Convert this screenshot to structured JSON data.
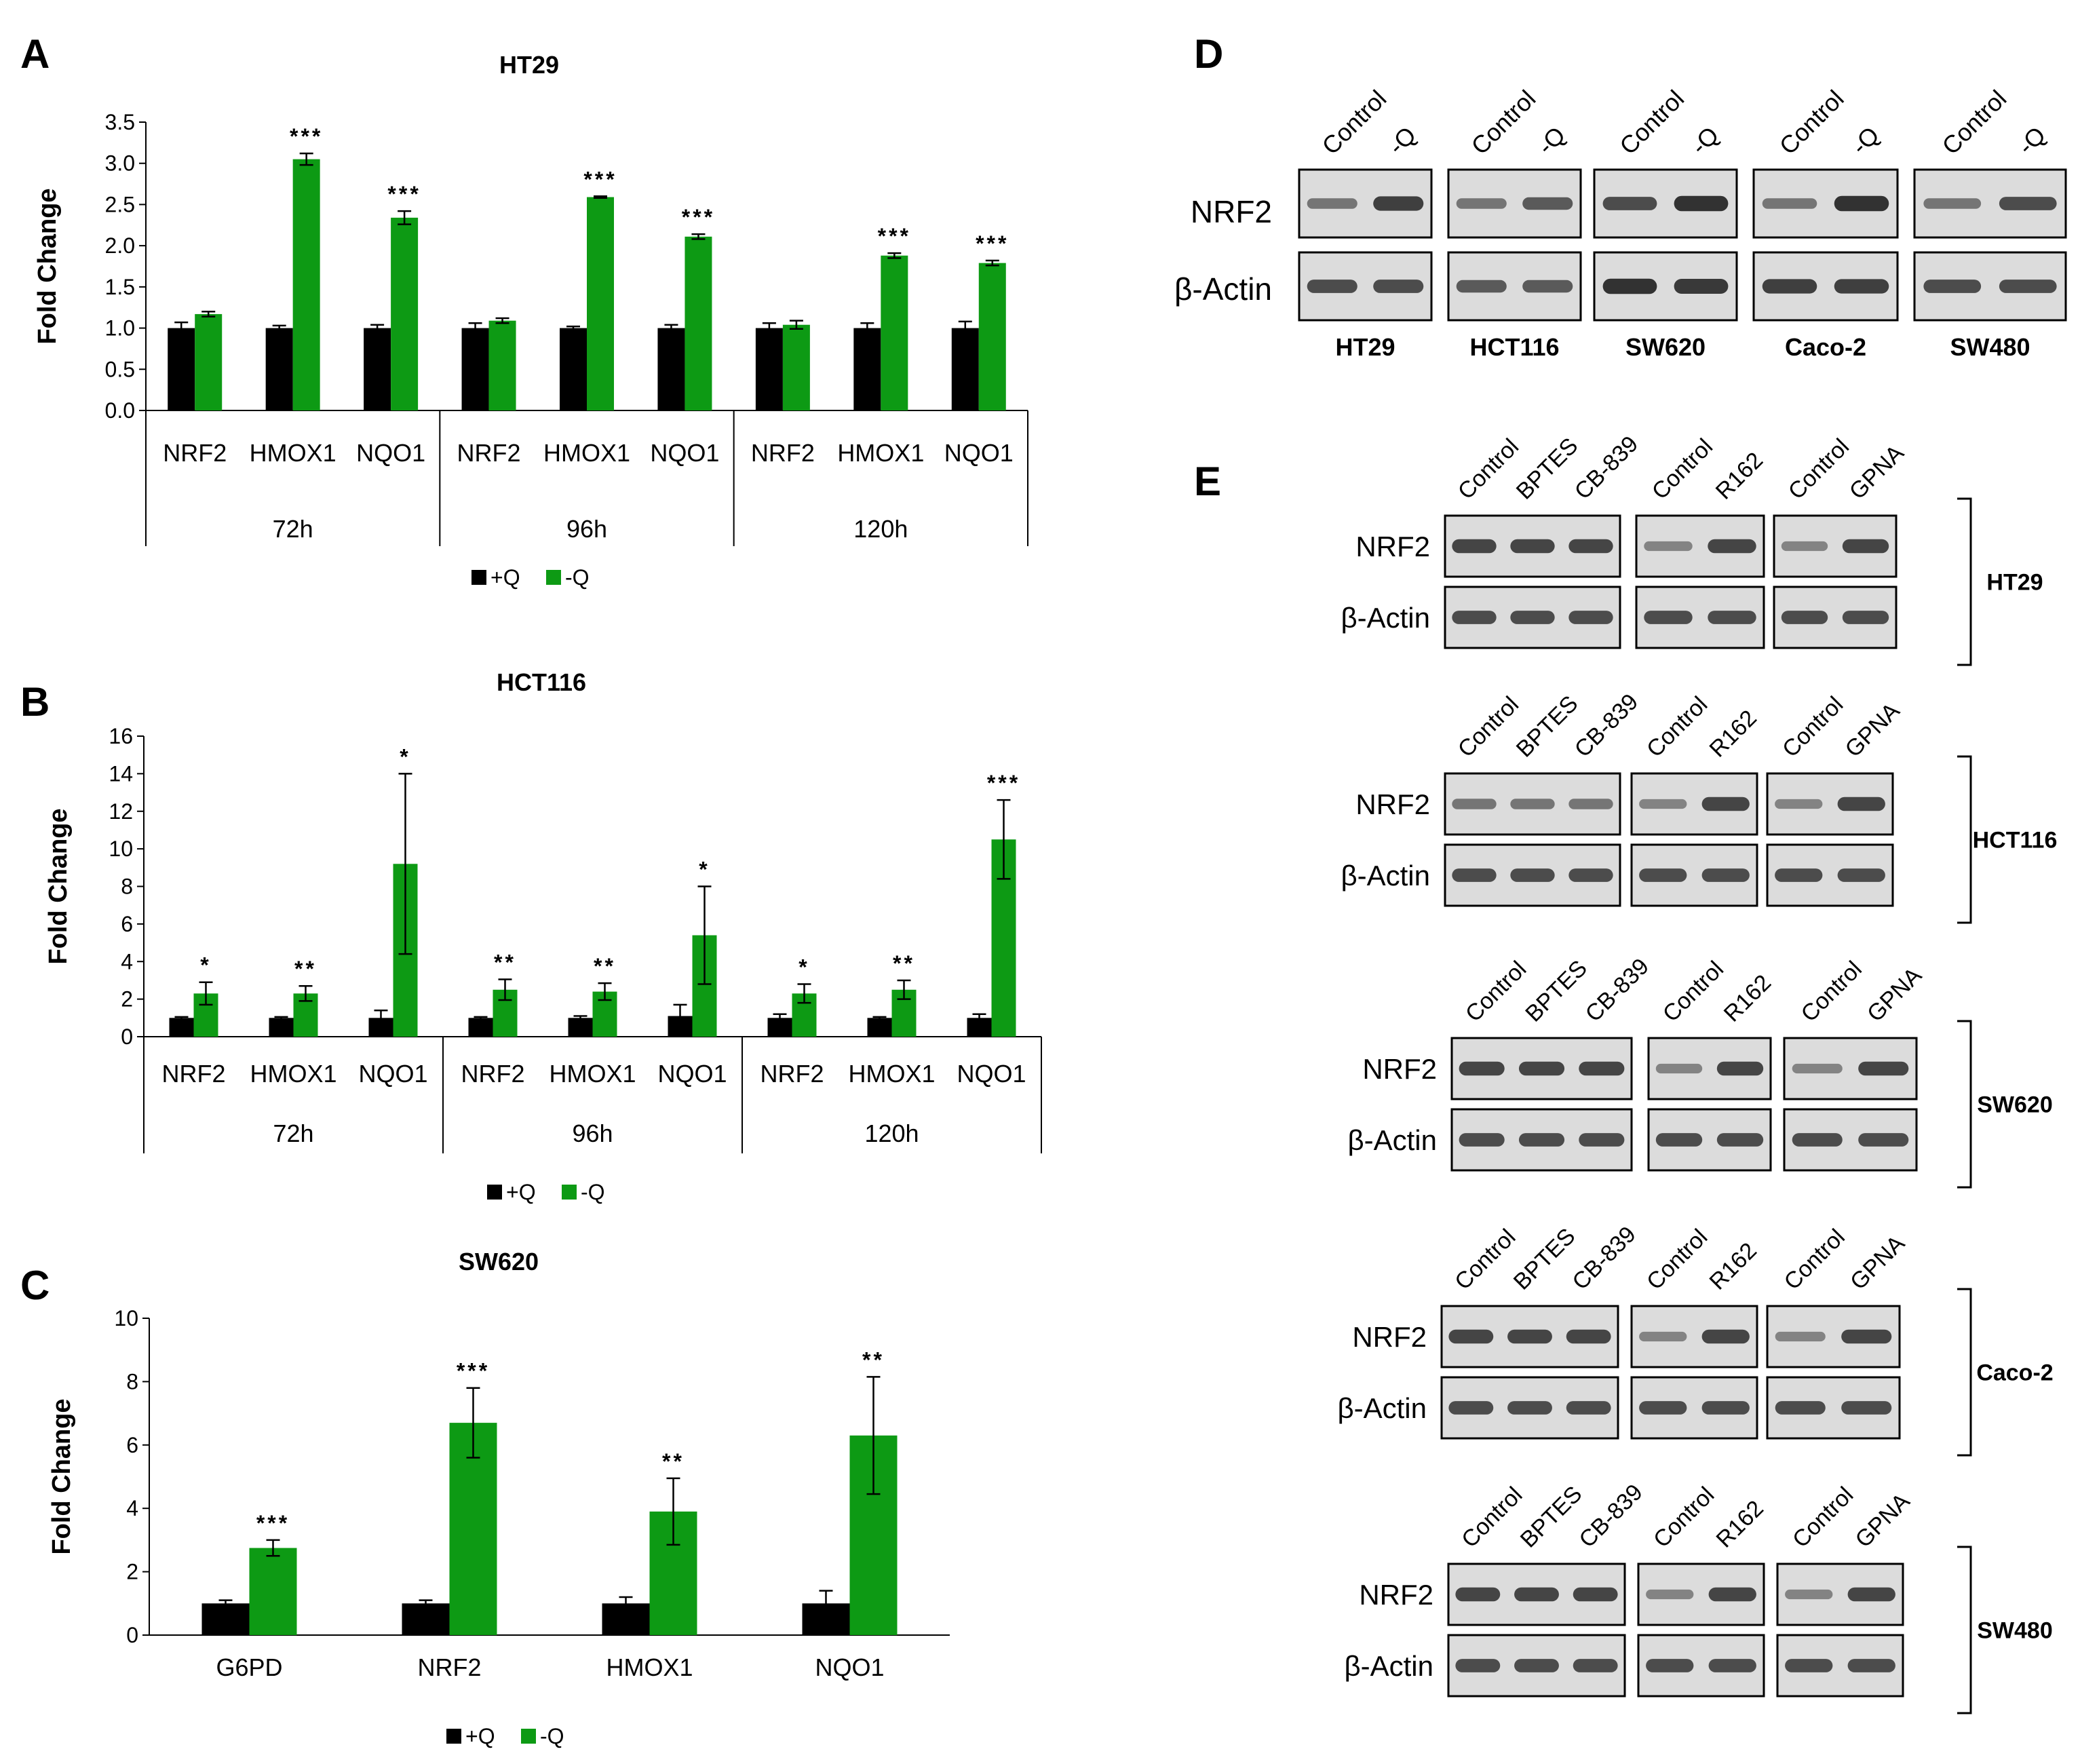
{
  "colors": {
    "plus_q": "#000000",
    "minus_q": "#0d9a14",
    "band": "#1a1a1a",
    "blot_bg": "#dcdcdc"
  },
  "panel_labels": {
    "A": "A",
    "B": "B",
    "C": "C",
    "D": "D",
    "E": "E"
  },
  "chart_data": [
    {
      "id": "A",
      "type": "bar",
      "title": "HT29",
      "ylabel": "Fold Change",
      "ylim": [
        0,
        3.5
      ],
      "yticks": [
        "0.0",
        "0.5",
        "1.0",
        "1.5",
        "2.0",
        "2.5",
        "3.0",
        "3.5"
      ],
      "series_names": [
        "+Q",
        "-Q"
      ],
      "groups": [
        {
          "label": "72h",
          "genes": [
            "NRF2",
            "HMOX1",
            "NQO1"
          ],
          "plus_q": [
            1.0,
            1.0,
            1.0
          ],
          "plus_err": [
            0.07,
            0.03,
            0.04
          ],
          "minus_q": [
            1.17,
            3.05,
            2.34
          ],
          "minus_err": [
            0.03,
            0.07,
            0.08
          ],
          "sig": [
            "",
            "***",
            "***"
          ]
        },
        {
          "label": "96h",
          "genes": [
            "NRF2",
            "HMOX1",
            "NQO1"
          ],
          "plus_q": [
            1.0,
            1.0,
            1.0
          ],
          "plus_err": [
            0.06,
            0.02,
            0.04
          ],
          "minus_q": [
            1.09,
            2.59,
            2.11
          ],
          "minus_err": [
            0.03,
            0.01,
            0.03
          ],
          "sig": [
            "",
            "***",
            "***"
          ]
        },
        {
          "label": "120h",
          "genes": [
            "NRF2",
            "HMOX1",
            "NQO1"
          ],
          "plus_q": [
            1.0,
            1.0,
            1.0
          ],
          "plus_err": [
            0.06,
            0.06,
            0.08
          ],
          "minus_q": [
            1.04,
            1.88,
            1.79
          ],
          "minus_err": [
            0.05,
            0.03,
            0.03
          ],
          "sig": [
            "",
            "***",
            "***"
          ]
        }
      ]
    },
    {
      "id": "B",
      "type": "bar",
      "title": "HCT116",
      "ylabel": "Fold Change",
      "ylim": [
        0,
        16
      ],
      "yticks": [
        "0",
        "2",
        "4",
        "6",
        "8",
        "10",
        "12",
        "14",
        "16"
      ],
      "series_names": [
        "+Q",
        "-Q"
      ],
      "groups": [
        {
          "label": "72h",
          "genes": [
            "NRF2",
            "HMOX1",
            "NQO1"
          ],
          "plus_q": [
            1.0,
            1.0,
            1.0
          ],
          "plus_err": [
            0.05,
            0.05,
            0.4
          ],
          "minus_q": [
            2.3,
            2.3,
            9.2
          ],
          "minus_err": [
            0.6,
            0.4,
            4.8
          ],
          "sig": [
            "*",
            "**",
            "*"
          ]
        },
        {
          "label": "96h",
          "genes": [
            "NRF2",
            "HMOX1",
            "NQO1"
          ],
          "plus_q": [
            1.0,
            1.0,
            1.1
          ],
          "plus_err": [
            0.05,
            0.1,
            0.6
          ],
          "minus_q": [
            2.5,
            2.4,
            5.4
          ],
          "minus_err": [
            0.55,
            0.45,
            2.6
          ],
          "sig": [
            "**",
            "**",
            "*"
          ]
        },
        {
          "label": "120h",
          "genes": [
            "NRF2",
            "HMOX1",
            "NQO1"
          ],
          "plus_q": [
            1.0,
            1.0,
            1.0
          ],
          "plus_err": [
            0.2,
            0.05,
            0.2
          ],
          "minus_q": [
            2.3,
            2.5,
            10.5
          ],
          "minus_err": [
            0.5,
            0.5,
            2.1
          ],
          "sig": [
            "*",
            "**",
            "***"
          ]
        }
      ]
    },
    {
      "id": "C",
      "type": "bar",
      "title": "SW620",
      "ylabel": "Fold Change",
      "ylim": [
        0,
        10
      ],
      "yticks": [
        "0",
        "2",
        "4",
        "6",
        "8",
        "10"
      ],
      "series_names": [
        "+Q",
        "-Q"
      ],
      "groups": [
        {
          "label": "",
          "genes": [
            "G6PD",
            "NRF2",
            "HMOX1",
            "NQO1"
          ],
          "plus_q": [
            1.0,
            1.0,
            1.0,
            1.0
          ],
          "plus_err": [
            0.1,
            0.1,
            0.2,
            0.4
          ],
          "minus_q": [
            2.75,
            6.7,
            3.9,
            6.3
          ],
          "minus_err": [
            0.25,
            1.1,
            1.05,
            1.85
          ],
          "sig": [
            "***",
            "***",
            "**",
            "**"
          ]
        }
      ]
    }
  ],
  "panel_D": {
    "lanes": [
      "Control",
      "-Q"
    ],
    "rows": [
      "NRF2",
      "β-Actin"
    ],
    "cell_lines": [
      "HT29",
      "HCT116",
      "SW620",
      "Caco-2",
      "SW480"
    ]
  },
  "panel_E": {
    "rows": [
      "NRF2",
      "β-Actin"
    ],
    "group_lanes": [
      [
        "Control",
        "BPTES",
        "CB-839"
      ],
      [
        "Control",
        "R162"
      ],
      [
        "Control",
        "GPNA"
      ]
    ],
    "cell_lines": [
      "HT29",
      "HCT116",
      "SW620",
      "Caco-2",
      "SW480"
    ]
  }
}
